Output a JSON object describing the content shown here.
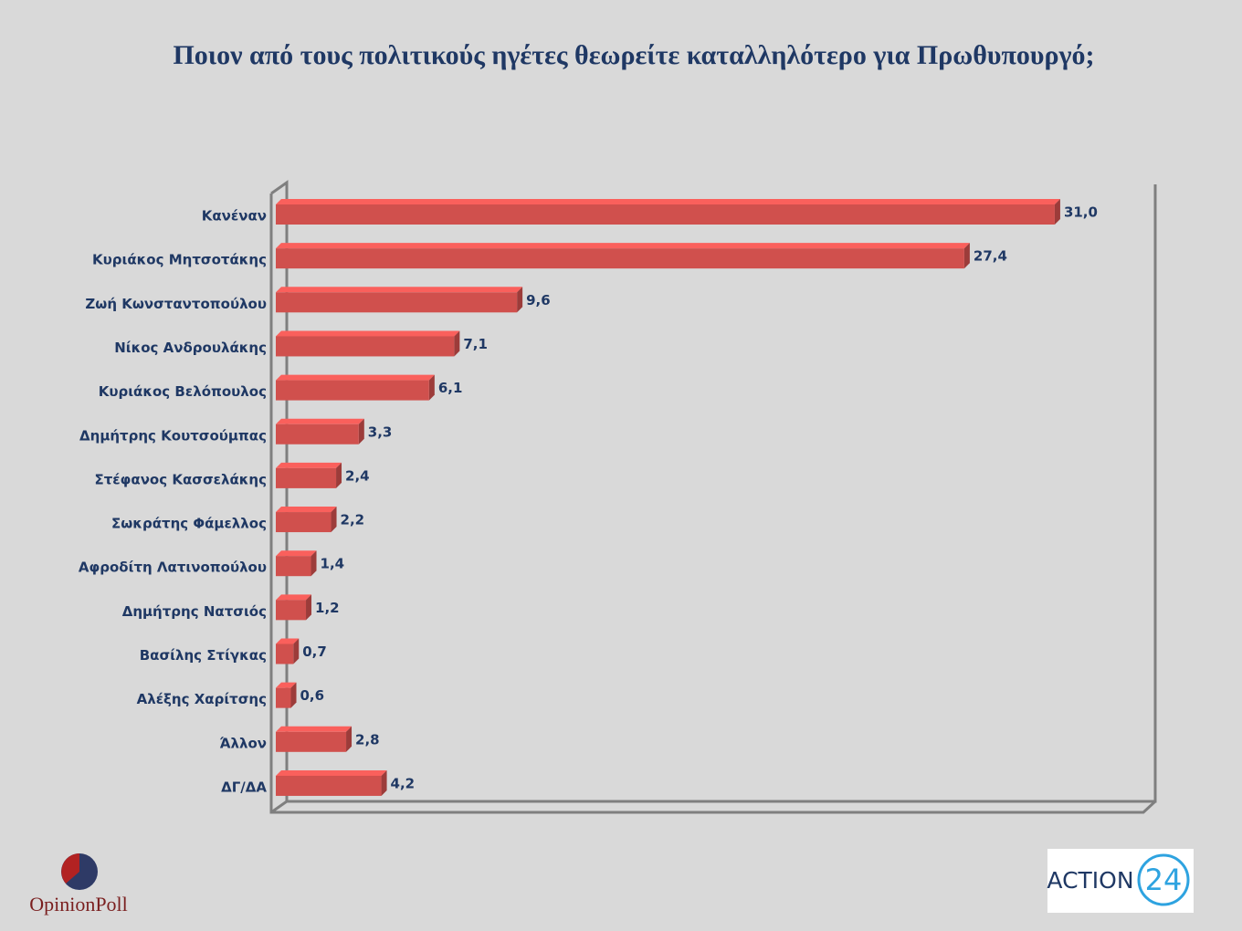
{
  "chart_data": {
    "type": "bar3d-horizontal",
    "title": "Ποιον από τους πολιτικούς ηγέτες θεωρείτε καταλληλότερο για Πρωθυπουργό;",
    "categories": [
      "Κανέναν",
      "Κυριάκος Μητσοτάκης",
      "Ζωή Κωνσταντοπούλου",
      "Νίκος Ανδρουλάκης",
      "Κυριάκος Βελόπουλος",
      "Δημήτρης Κουτσούμπας",
      "Στέφανος Κασσελάκης",
      "Σωκράτης Φάμελλος",
      "Αφροδίτη Λατινοπούλου",
      "Δημήτρης Νατσιός",
      "Βασίλης Στίγκας",
      "Αλέξης Χαρίτσης",
      "Άλλον",
      "ΔΓ/ΔΑ"
    ],
    "values": [
      31.0,
      27.4,
      9.6,
      7.1,
      6.1,
      3.3,
      2.4,
      2.2,
      1.4,
      1.2,
      0.7,
      0.6,
      2.8,
      4.2
    ],
    "value_labels": [
      "31,0",
      "27,4",
      "9,6",
      "7,1",
      "6,1",
      "3,3",
      "2,4",
      "2,2",
      "1,4",
      "1,2",
      "0,7",
      "0,6",
      "2,8",
      "4,2"
    ],
    "color": "#d0504d",
    "xlim": [
      0,
      35
    ]
  },
  "branding": {
    "left": "OpinionPoll",
    "right_word": "ACTION",
    "right_number": "24"
  }
}
